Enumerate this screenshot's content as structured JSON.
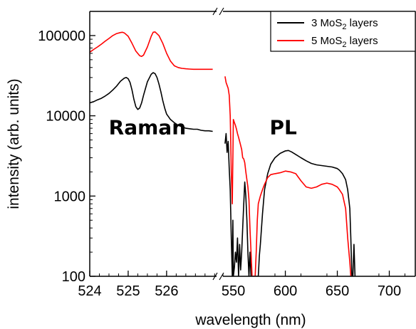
{
  "chart_data": {
    "type": "line",
    "title": "",
    "xlabel": "wavelength (nm)",
    "ylabel": "intensity (arb. units)",
    "yscale": "log",
    "ylim": [
      100,
      200000
    ],
    "grid": false,
    "legend_position": "top-right",
    "x_axis_break": true,
    "x_segments": [
      {
        "name": "raman",
        "xlim": [
          524,
          527.3
        ],
        "ticks": [
          524,
          525,
          526
        ],
        "tick_labels": [
          "524",
          "525",
          "526"
        ],
        "minor_step": 0.25
      },
      {
        "name": "pl",
        "xlim": [
          540,
          725
        ],
        "ticks": [
          550,
          600,
          650,
          700
        ],
        "tick_labels": [
          "550",
          "600",
          "650",
          "700"
        ],
        "minor_step": 25
      }
    ],
    "y_ticks": [
      100,
      1000,
      10000,
      100000
    ],
    "y_tick_labels": [
      "100",
      "1000",
      "10000",
      "100000"
    ],
    "legend": [
      {
        "series": "3 MoS2 layers",
        "text_before": "3 MoS",
        "subscript": "2",
        "text_after": " layers"
      },
      {
        "series": "5 MoS2 layers",
        "text_before": "5 MoS",
        "subscript": "2",
        "text_after": " layers"
      }
    ],
    "annotations": [
      {
        "text": "Raman",
        "x": 525.5,
        "y": 5000,
        "segment": "raman"
      },
      {
        "text": "PL",
        "x": 598,
        "y": 5000,
        "segment": "pl"
      }
    ],
    "series": [
      {
        "name": "3 MoS2 layers",
        "color": "#000000",
        "raman": {
          "x": [
            524.0,
            524.1,
            524.2,
            524.3,
            524.4,
            524.5,
            524.6,
            524.7,
            524.8,
            524.9,
            524.95,
            525.0,
            525.05,
            525.1,
            525.15,
            525.2,
            525.25,
            525.3,
            525.35,
            525.4,
            525.5,
            525.6,
            525.65,
            525.7,
            525.75,
            525.8,
            525.85,
            525.9,
            525.95,
            526.0,
            526.1,
            526.2,
            526.3,
            526.4,
            526.5,
            526.6,
            526.7,
            526.8,
            526.9,
            527.0,
            527.1,
            527.2
          ],
          "y": [
            14500,
            15000,
            15800,
            16500,
            17600,
            19000,
            21000,
            23500,
            27000,
            29500,
            30000,
            29000,
            26000,
            21000,
            16000,
            13000,
            12000,
            12500,
            14500,
            18000,
            26500,
            33000,
            34500,
            33500,
            30000,
            25000,
            20000,
            15500,
            12500,
            10500,
            9000,
            8200,
            7600,
            7300,
            7000,
            6900,
            6800,
            6800,
            6600,
            6500,
            6500,
            6400
          ]
        },
        "pl": {
          "x": [
            542,
            543,
            544,
            545,
            546,
            547,
            548,
            549,
            549.5,
            550,
            551,
            552,
            553,
            554,
            555,
            556,
            557,
            558,
            559,
            560,
            561,
            562,
            563,
            564,
            565,
            566,
            567,
            568,
            570,
            572,
            574,
            575,
            576,
            578,
            580,
            583,
            586,
            590,
            595,
            600,
            603,
            606,
            610,
            615,
            620,
            625,
            630,
            635,
            640,
            645,
            650,
            652,
            655,
            658,
            660,
            662,
            663,
            664,
            665,
            666,
            667
          ],
          "y": [
            4500,
            6000,
            3500,
            4800,
            2200,
            1200,
            300,
            100,
            500,
            100,
            130,
            200,
            150,
            300,
            100,
            250,
            120,
            200,
            400,
            800,
            1500,
            1000,
            500,
            200,
            100,
            200,
            100,
            100,
            100,
            100,
            100,
            180,
            250,
            600,
            1200,
            1900,
            2500,
            3000,
            3400,
            3650,
            3700,
            3550,
            3300,
            3000,
            2750,
            2550,
            2450,
            2400,
            2350,
            2300,
            2200,
            2100,
            1900,
            1600,
            1200,
            700,
            300,
            100,
            100,
            250,
            100
          ]
        }
      },
      {
        "name": "5 MoS2 layers",
        "color": "#ff0000",
        "raman": {
          "x": [
            524.0,
            524.1,
            524.2,
            524.3,
            524.4,
            524.5,
            524.6,
            524.7,
            524.8,
            524.85,
            524.9,
            525.0,
            525.1,
            525.2,
            525.3,
            525.35,
            525.4,
            525.5,
            525.6,
            525.65,
            525.7,
            525.8,
            525.9,
            526.0,
            526.1,
            526.2,
            526.3,
            526.4,
            526.5,
            526.6,
            526.7,
            526.8,
            526.9,
            527.0,
            527.1,
            527.2
          ],
          "y": [
            62000,
            67000,
            72000,
            78000,
            85000,
            92000,
            100000,
            106000,
            109000,
            110000,
            108000,
            98000,
            80000,
            64000,
            56000,
            55000,
            57000,
            72000,
            98000,
            110000,
            111000,
            100000,
            80000,
            60000,
            48000,
            42000,
            40000,
            39000,
            38500,
            38200,
            38000,
            38000,
            38000,
            38000,
            38000,
            38000
          ]
        },
        "pl": {
          "x": [
            542,
            543,
            544,
            545,
            546,
            547,
            548,
            549,
            550,
            551,
            552,
            553,
            554,
            555,
            556,
            557,
            558,
            559,
            560,
            561,
            562,
            563,
            564,
            565,
            566,
            567,
            568,
            569,
            570,
            571,
            572,
            573,
            574,
            575,
            576,
            578,
            580,
            583,
            586,
            590,
            595,
            600,
            605,
            610,
            615,
            620,
            625,
            630,
            635,
            640,
            645,
            650,
            652,
            655,
            658,
            660,
            662,
            663,
            664
          ],
          "y": [
            31000,
            26000,
            24000,
            22000,
            18000,
            10000,
            2000,
            800,
            9000,
            8200,
            7600,
            6800,
            6000,
            5400,
            4800,
            4300,
            3800,
            3000,
            2900,
            2600,
            2000,
            1600,
            1300,
            900,
            400,
            200,
            100,
            100,
            100,
            100,
            200,
            500,
            800,
            900,
            1000,
            1200,
            1400,
            1700,
            1850,
            1900,
            1950,
            2050,
            2000,
            1900,
            1550,
            1300,
            1250,
            1300,
            1400,
            1450,
            1400,
            1300,
            1200,
            1050,
            700,
            300,
            150,
            100,
            100
          ]
        }
      }
    ]
  }
}
